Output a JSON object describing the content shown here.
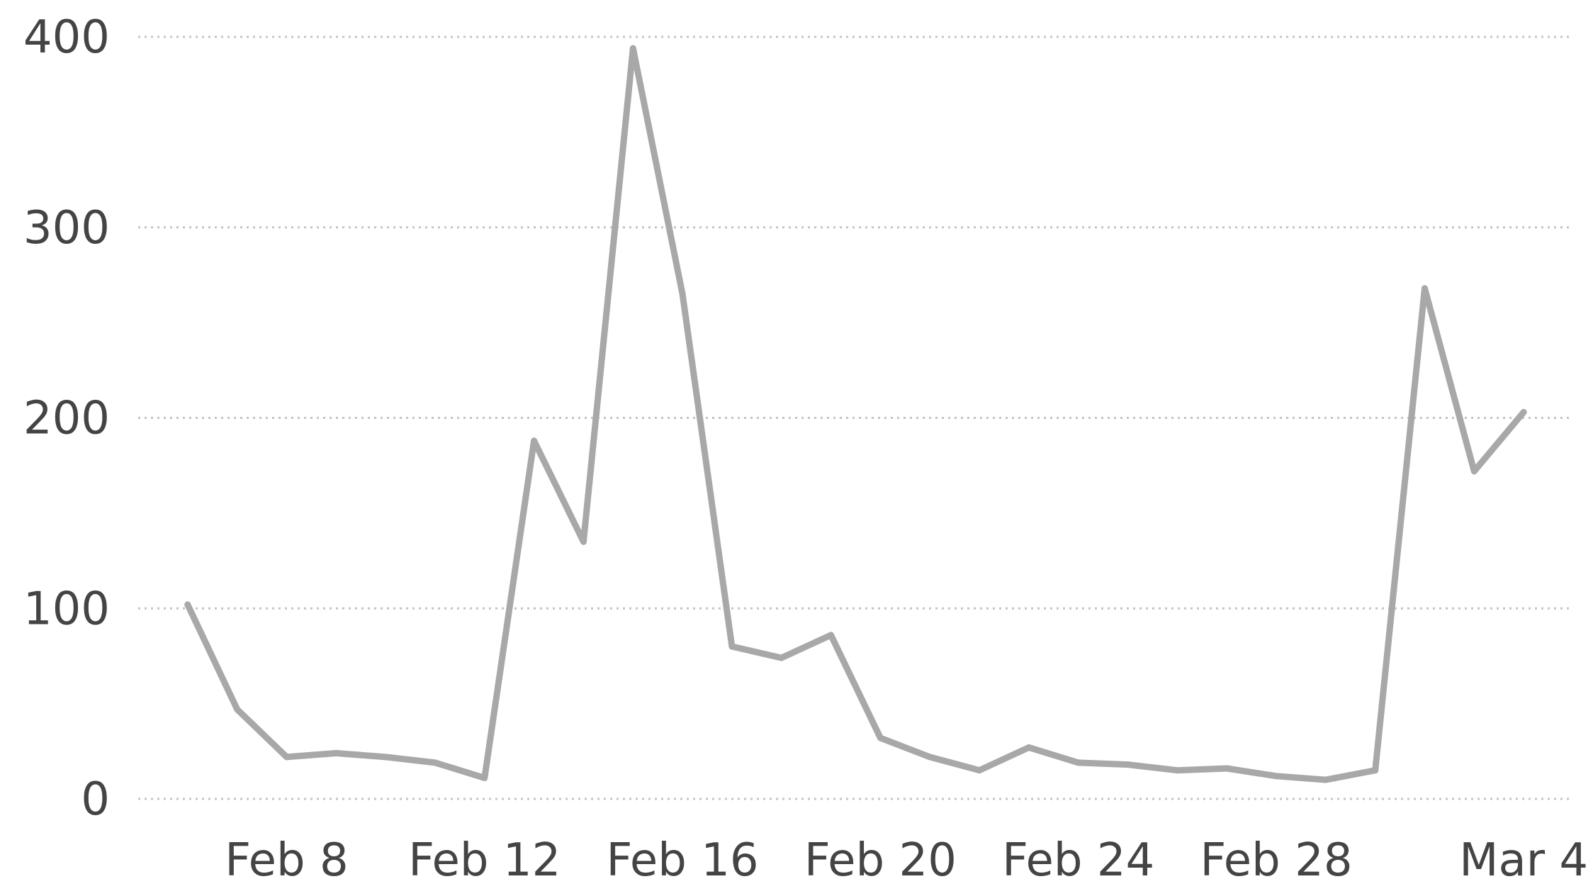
{
  "chart_data": {
    "type": "line",
    "title": "",
    "xlabel": "",
    "ylabel": "",
    "ylim": [
      0,
      400
    ],
    "grid": true,
    "y_ticks": [
      {
        "value": 0,
        "label": "0"
      },
      {
        "value": 100,
        "label": "100"
      },
      {
        "value": 200,
        "label": "200"
      },
      {
        "value": 300,
        "label": "300"
      },
      {
        "value": 400,
        "label": "400"
      }
    ],
    "x_ticks": [
      {
        "date": "2024-02-08",
        "label": "Feb 8"
      },
      {
        "date": "2024-02-12",
        "label": "Feb 12"
      },
      {
        "date": "2024-02-16",
        "label": "Feb 16"
      },
      {
        "date": "2024-02-20",
        "label": "Feb 20"
      },
      {
        "date": "2024-02-24",
        "label": "Feb 24"
      },
      {
        "date": "2024-02-28",
        "label": "Feb 28"
      },
      {
        "date": "2024-03-04",
        "label": "Mar 4"
      }
    ],
    "x_range": [
      "2024-02-05",
      "2024-03-05"
    ],
    "series": [
      {
        "color": "#a8a8a8",
        "points": [
          {
            "x": "2024-02-06",
            "y": 102
          },
          {
            "x": "2024-02-07",
            "y": 47
          },
          {
            "x": "2024-02-08",
            "y": 22
          },
          {
            "x": "2024-02-09",
            "y": 24
          },
          {
            "x": "2024-02-10",
            "y": 22
          },
          {
            "x": "2024-02-11",
            "y": 19
          },
          {
            "x": "2024-02-12",
            "y": 11
          },
          {
            "x": "2024-02-13",
            "y": 188
          },
          {
            "x": "2024-02-14",
            "y": 135
          },
          {
            "x": "2024-02-15",
            "y": 394
          },
          {
            "x": "2024-02-16",
            "y": 265
          },
          {
            "x": "2024-02-17",
            "y": 80
          },
          {
            "x": "2024-02-18",
            "y": 74
          },
          {
            "x": "2024-02-19",
            "y": 86
          },
          {
            "x": "2024-02-20",
            "y": 32
          },
          {
            "x": "2024-02-21",
            "y": 22
          },
          {
            "x": "2024-02-22",
            "y": 15
          },
          {
            "x": "2024-02-23",
            "y": 27
          },
          {
            "x": "2024-02-24",
            "y": 19
          },
          {
            "x": "2024-02-25",
            "y": 18
          },
          {
            "x": "2024-02-26",
            "y": 15
          },
          {
            "x": "2024-02-27",
            "y": 16
          },
          {
            "x": "2024-02-28",
            "y": 12
          },
          {
            "x": "2024-02-29",
            "y": 10
          },
          {
            "x": "2024-03-01",
            "y": 15
          },
          {
            "x": "2024-03-02",
            "y": 268
          },
          {
            "x": "2024-03-03",
            "y": 172
          },
          {
            "x": "2024-03-04",
            "y": 203
          }
        ]
      }
    ]
  }
}
